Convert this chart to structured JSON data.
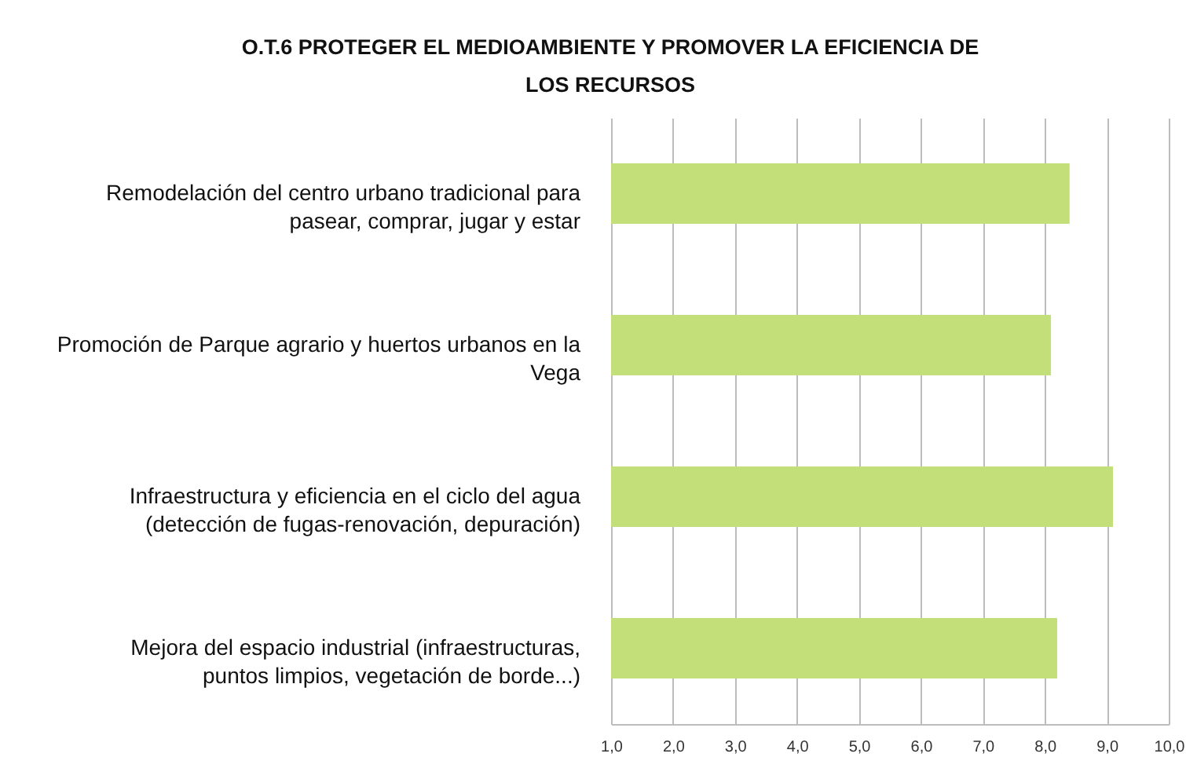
{
  "chart_data": {
    "type": "bar",
    "orientation": "horizontal",
    "title": "O.T.6 PROTEGER EL MEDIOAMBIENTE Y PROMOVER LA EFICIENCIA DE LOS RECURSOS",
    "categories": [
      "Remodelación del centro urbano tradicional para pasear, comprar, jugar y estar",
      "Promoción de Parque agrario y huertos urbanos en la Vega",
      "Infraestructura y eficiencia en el ciclo del agua (detección de fugas-renovación, depuración)",
      "Mejora del espacio industrial (infraestructuras, puntos limpios, vegetación de borde...)"
    ],
    "values": [
      8.4,
      8.1,
      9.1,
      8.2
    ],
    "color": "#c3df7a",
    "xlim": [
      1,
      10
    ],
    "xticks": [
      {
        "value": 1,
        "label": "1,0"
      },
      {
        "value": 2,
        "label": "2,0"
      },
      {
        "value": 3,
        "label": "3,0"
      },
      {
        "value": 4,
        "label": "4,0"
      },
      {
        "value": 5,
        "label": "5,0"
      },
      {
        "value": 6,
        "label": "6,0"
      },
      {
        "value": 7,
        "label": "7,0"
      },
      {
        "value": 8,
        "label": "8,0"
      },
      {
        "value": 9,
        "label": "9,0"
      },
      {
        "value": 10,
        "label": "10,0"
      }
    ],
    "grid": "x"
  }
}
